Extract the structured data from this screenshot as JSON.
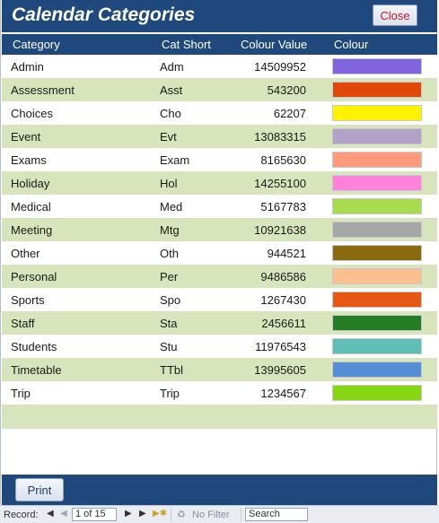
{
  "window": {
    "title": "Calendar Categories",
    "close_label": "Close"
  },
  "columns": {
    "category": "Category",
    "cat_short": "Cat Short",
    "colour_value": "Colour Value",
    "colour": "Colour"
  },
  "rows": [
    {
      "category": "Admin",
      "short": "Adm",
      "value": "14509952",
      "color": "#8064dd"
    },
    {
      "category": "Assessment",
      "short": "Asst",
      "value": "543200",
      "color": "#e0480a"
    },
    {
      "category": "Choices",
      "short": "Cho",
      "value": "62207",
      "color": "#fff200"
    },
    {
      "category": "Event",
      "short": "Evt",
      "value": "13083315",
      "color": "#b3a2c7"
    },
    {
      "category": "Exams",
      "short": "Exam",
      "value": "8165630",
      "color": "#fe9a7c"
    },
    {
      "category": "Holiday",
      "short": "Hol",
      "value": "14255100",
      "color": "#fc83d9"
    },
    {
      "category": "Medical",
      "short": "Med",
      "value": "5167783",
      "color": "#a7dc4e"
    },
    {
      "category": "Meeting",
      "short": "Mtg",
      "value": "10921638",
      "color": "#a6a6a6"
    },
    {
      "category": "Other",
      "short": "Oth",
      "value": "944521",
      "color": "#896a0e"
    },
    {
      "category": "Personal",
      "short": "Per",
      "value": "9486586",
      "color": "#fac090"
    },
    {
      "category": "Sports",
      "short": "Spo",
      "value": "1267430",
      "color": "#e65713"
    },
    {
      "category": "Staff",
      "short": "Sta",
      "value": "2456611",
      "color": "#257c25"
    },
    {
      "category": "Students",
      "short": "Stu",
      "value": "11976543",
      "color": "#5fbeb6"
    },
    {
      "category": "Timetable",
      "short": "TTbl",
      "value": "13995605",
      "color": "#558ed5"
    },
    {
      "category": "Trip",
      "short": "Trip",
      "value": "1234567",
      "color": "#86d614"
    }
  ],
  "footer": {
    "print_label": "Print"
  },
  "navigation": {
    "record_label": "Record:",
    "position": "1 of 15",
    "no_filter_label": "No Filter",
    "search_value": "Search"
  },
  "colors": {
    "header_bg": "#1f497d",
    "alt_row": "#d8e4bc",
    "close_text": "#c0182d"
  }
}
